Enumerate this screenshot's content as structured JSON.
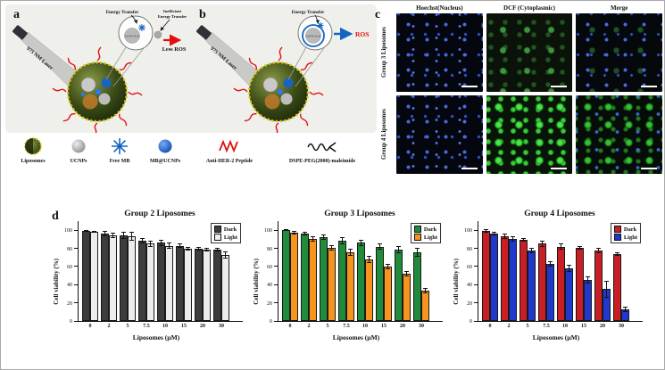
{
  "panels": {
    "a": "a",
    "b": "b",
    "c": "c",
    "d": "d"
  },
  "schematic_a": {
    "laser": "975 NM Laser",
    "energy_transfer": "Energy Transfer",
    "inefficient_line1": "Inefficient",
    "inefficient_line2": "Energy Transfer",
    "particle": "NaYF4:Yb,Er",
    "result": "Less ROS"
  },
  "schematic_b": {
    "laser": "975 NM Laser",
    "energy_transfer": "Energy Transfer",
    "particle": "NaYF4:Yb,Er",
    "result": "ROS"
  },
  "legend": {
    "items": [
      {
        "label": "Liposomes"
      },
      {
        "label": "UCNPs"
      },
      {
        "label": "Free MB"
      },
      {
        "label": "MB@UCNPs"
      },
      {
        "label": "Anti-HER-2 Peptide"
      },
      {
        "label": "DSPE-PEG(2000)-maleimide"
      }
    ]
  },
  "microscopy": {
    "col_headers": [
      "Hoechst(Nucleus)",
      "DCF (Cytoplasmic)",
      "Merge"
    ],
    "row_labels": [
      "Group 3 Liposomes",
      "Group 4 Liposomes"
    ]
  },
  "chart_data": [
    {
      "type": "bar",
      "title": "Group 2 Liposomes",
      "xlabel": "Liposomes (µM)",
      "ylabel": "Cell viability (%)",
      "ylim": [
        0,
        110
      ],
      "yticks": [
        0,
        20,
        40,
        60,
        80,
        100
      ],
      "categories": [
        "0",
        "2",
        "5",
        "7.5",
        "10",
        "15",
        "20",
        "30"
      ],
      "legend_position": "top-right",
      "series": [
        {
          "name": "Dark",
          "color": "#3d3d3d",
          "pattern": "checker",
          "values": [
            99,
            96,
            94,
            88,
            86,
            83,
            80,
            79
          ],
          "errors": [
            1,
            3,
            4,
            3,
            3,
            2,
            2,
            2
          ]
        },
        {
          "name": "Light",
          "color": "#ededed",
          "pattern": "checker",
          "values": [
            98,
            94,
            93,
            85,
            83,
            80,
            79,
            73
          ],
          "errors": [
            1,
            3,
            5,
            3,
            3,
            2,
            2,
            4
          ]
        }
      ]
    },
    {
      "type": "bar",
      "title": "Group 3 Liposomes",
      "xlabel": "Liposomes (µM)",
      "ylabel": "Cell viability (%)",
      "ylim": [
        0,
        110
      ],
      "yticks": [
        0,
        20,
        40,
        60,
        80,
        100
      ],
      "categories": [
        "0",
        "2",
        "5",
        "7.5",
        "10",
        "15",
        "20",
        "30"
      ],
      "legend_position": "top-right",
      "series": [
        {
          "name": "Dark",
          "color": "#1f8b3b",
          "pattern": "checker",
          "values": [
            100,
            96,
            92,
            88,
            86,
            82,
            79,
            76
          ],
          "errors": [
            1,
            2,
            3,
            4,
            3,
            3,
            4,
            5
          ]
        },
        {
          "name": "Light",
          "color": "#f7941d",
          "pattern": "none",
          "values": [
            97,
            90,
            81,
            76,
            68,
            60,
            52,
            33
          ],
          "errors": [
            2,
            3,
            3,
            4,
            4,
            3,
            3,
            3
          ]
        }
      ]
    },
    {
      "type": "bar",
      "title": "Group 4 Liposomes",
      "xlabel": "Liposomes (µM)",
      "ylabel": "Cell viability (%)",
      "ylim": [
        0,
        110
      ],
      "yticks": [
        0,
        20,
        40,
        60,
        80,
        100
      ],
      "categories": [
        "0",
        "2",
        "5",
        "7.5",
        "10",
        "15",
        "20",
        "30"
      ],
      "legend_position": "top-right",
      "series": [
        {
          "name": "Dark",
          "color": "#c81e24",
          "pattern": "checker",
          "values": [
            99,
            93,
            89,
            85,
            82,
            81,
            78,
            74
          ],
          "errors": [
            2,
            3,
            2,
            3,
            3,
            2,
            3,
            2
          ]
        },
        {
          "name": "Light",
          "color": "#2038cc",
          "pattern": "none",
          "values": [
            96,
            90,
            78,
            63,
            58,
            45,
            35,
            13
          ],
          "errors": [
            2,
            3,
            3,
            3,
            4,
            4,
            9,
            3
          ]
        }
      ]
    }
  ]
}
